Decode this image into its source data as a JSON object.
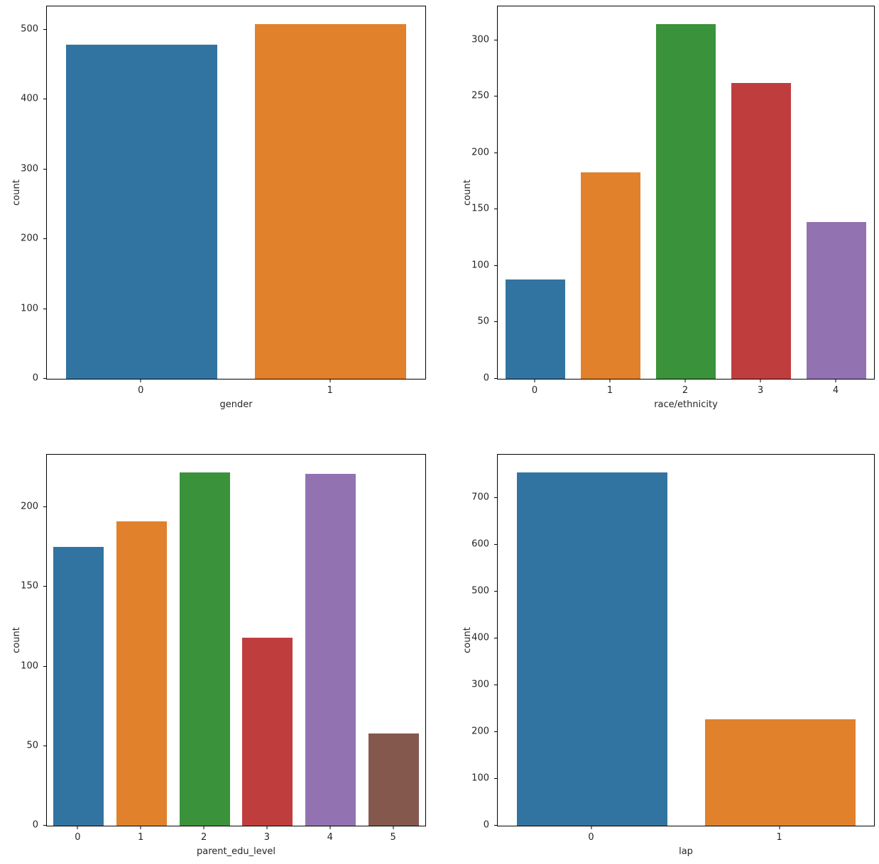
{
  "figure": {
    "background_color": "#ffffff",
    "axis_color": "#000000",
    "text_color": "#262626",
    "layout": "2x2 grid of bar charts"
  },
  "chart_data": [
    {
      "type": "bar",
      "title": "",
      "xlabel": "gender",
      "ylabel": "count",
      "categories": [
        "0",
        "1"
      ],
      "values": [
        478,
        508
      ],
      "bar_colors": [
        "#3274a1",
        "#e1812c"
      ],
      "ylim": [
        0,
        533
      ],
      "yticks": [
        0,
        100,
        200,
        300,
        400,
        500
      ],
      "grid": false,
      "legend": "none"
    },
    {
      "type": "bar",
      "title": "",
      "xlabel": "race/ethnicity",
      "ylabel": "count",
      "categories": [
        "0",
        "1",
        "2",
        "3",
        "4"
      ],
      "values": [
        88,
        183,
        314,
        262,
        139
      ],
      "bar_colors": [
        "#3274a1",
        "#e1812c",
        "#3a923a",
        "#c03d3e",
        "#9372b2"
      ],
      "ylim": [
        0,
        330
      ],
      "yticks": [
        0,
        50,
        100,
        150,
        200,
        250,
        300
      ],
      "grid": false,
      "legend": "none"
    },
    {
      "type": "bar",
      "title": "",
      "xlabel": "parent_edu_level",
      "ylabel": "count",
      "categories": [
        "0",
        "1",
        "2",
        "3",
        "4",
        "5"
      ],
      "values": [
        175,
        191,
        222,
        118,
        221,
        58
      ],
      "bar_colors": [
        "#3274a1",
        "#e1812c",
        "#3a923a",
        "#c03d3e",
        "#9372b2",
        "#85584e"
      ],
      "ylim": [
        0,
        233
      ],
      "yticks": [
        0,
        50,
        100,
        150,
        200
      ],
      "grid": false,
      "legend": "none"
    },
    {
      "type": "bar",
      "title": "",
      "xlabel": "lap",
      "ylabel": "count",
      "categories": [
        "0",
        "1"
      ],
      "values": [
        755,
        228
      ],
      "bar_colors": [
        "#3274a1",
        "#e1812c"
      ],
      "ylim": [
        0,
        793
      ],
      "yticks": [
        0,
        100,
        200,
        300,
        400,
        500,
        600,
        700
      ],
      "grid": false,
      "legend": "none"
    }
  ]
}
